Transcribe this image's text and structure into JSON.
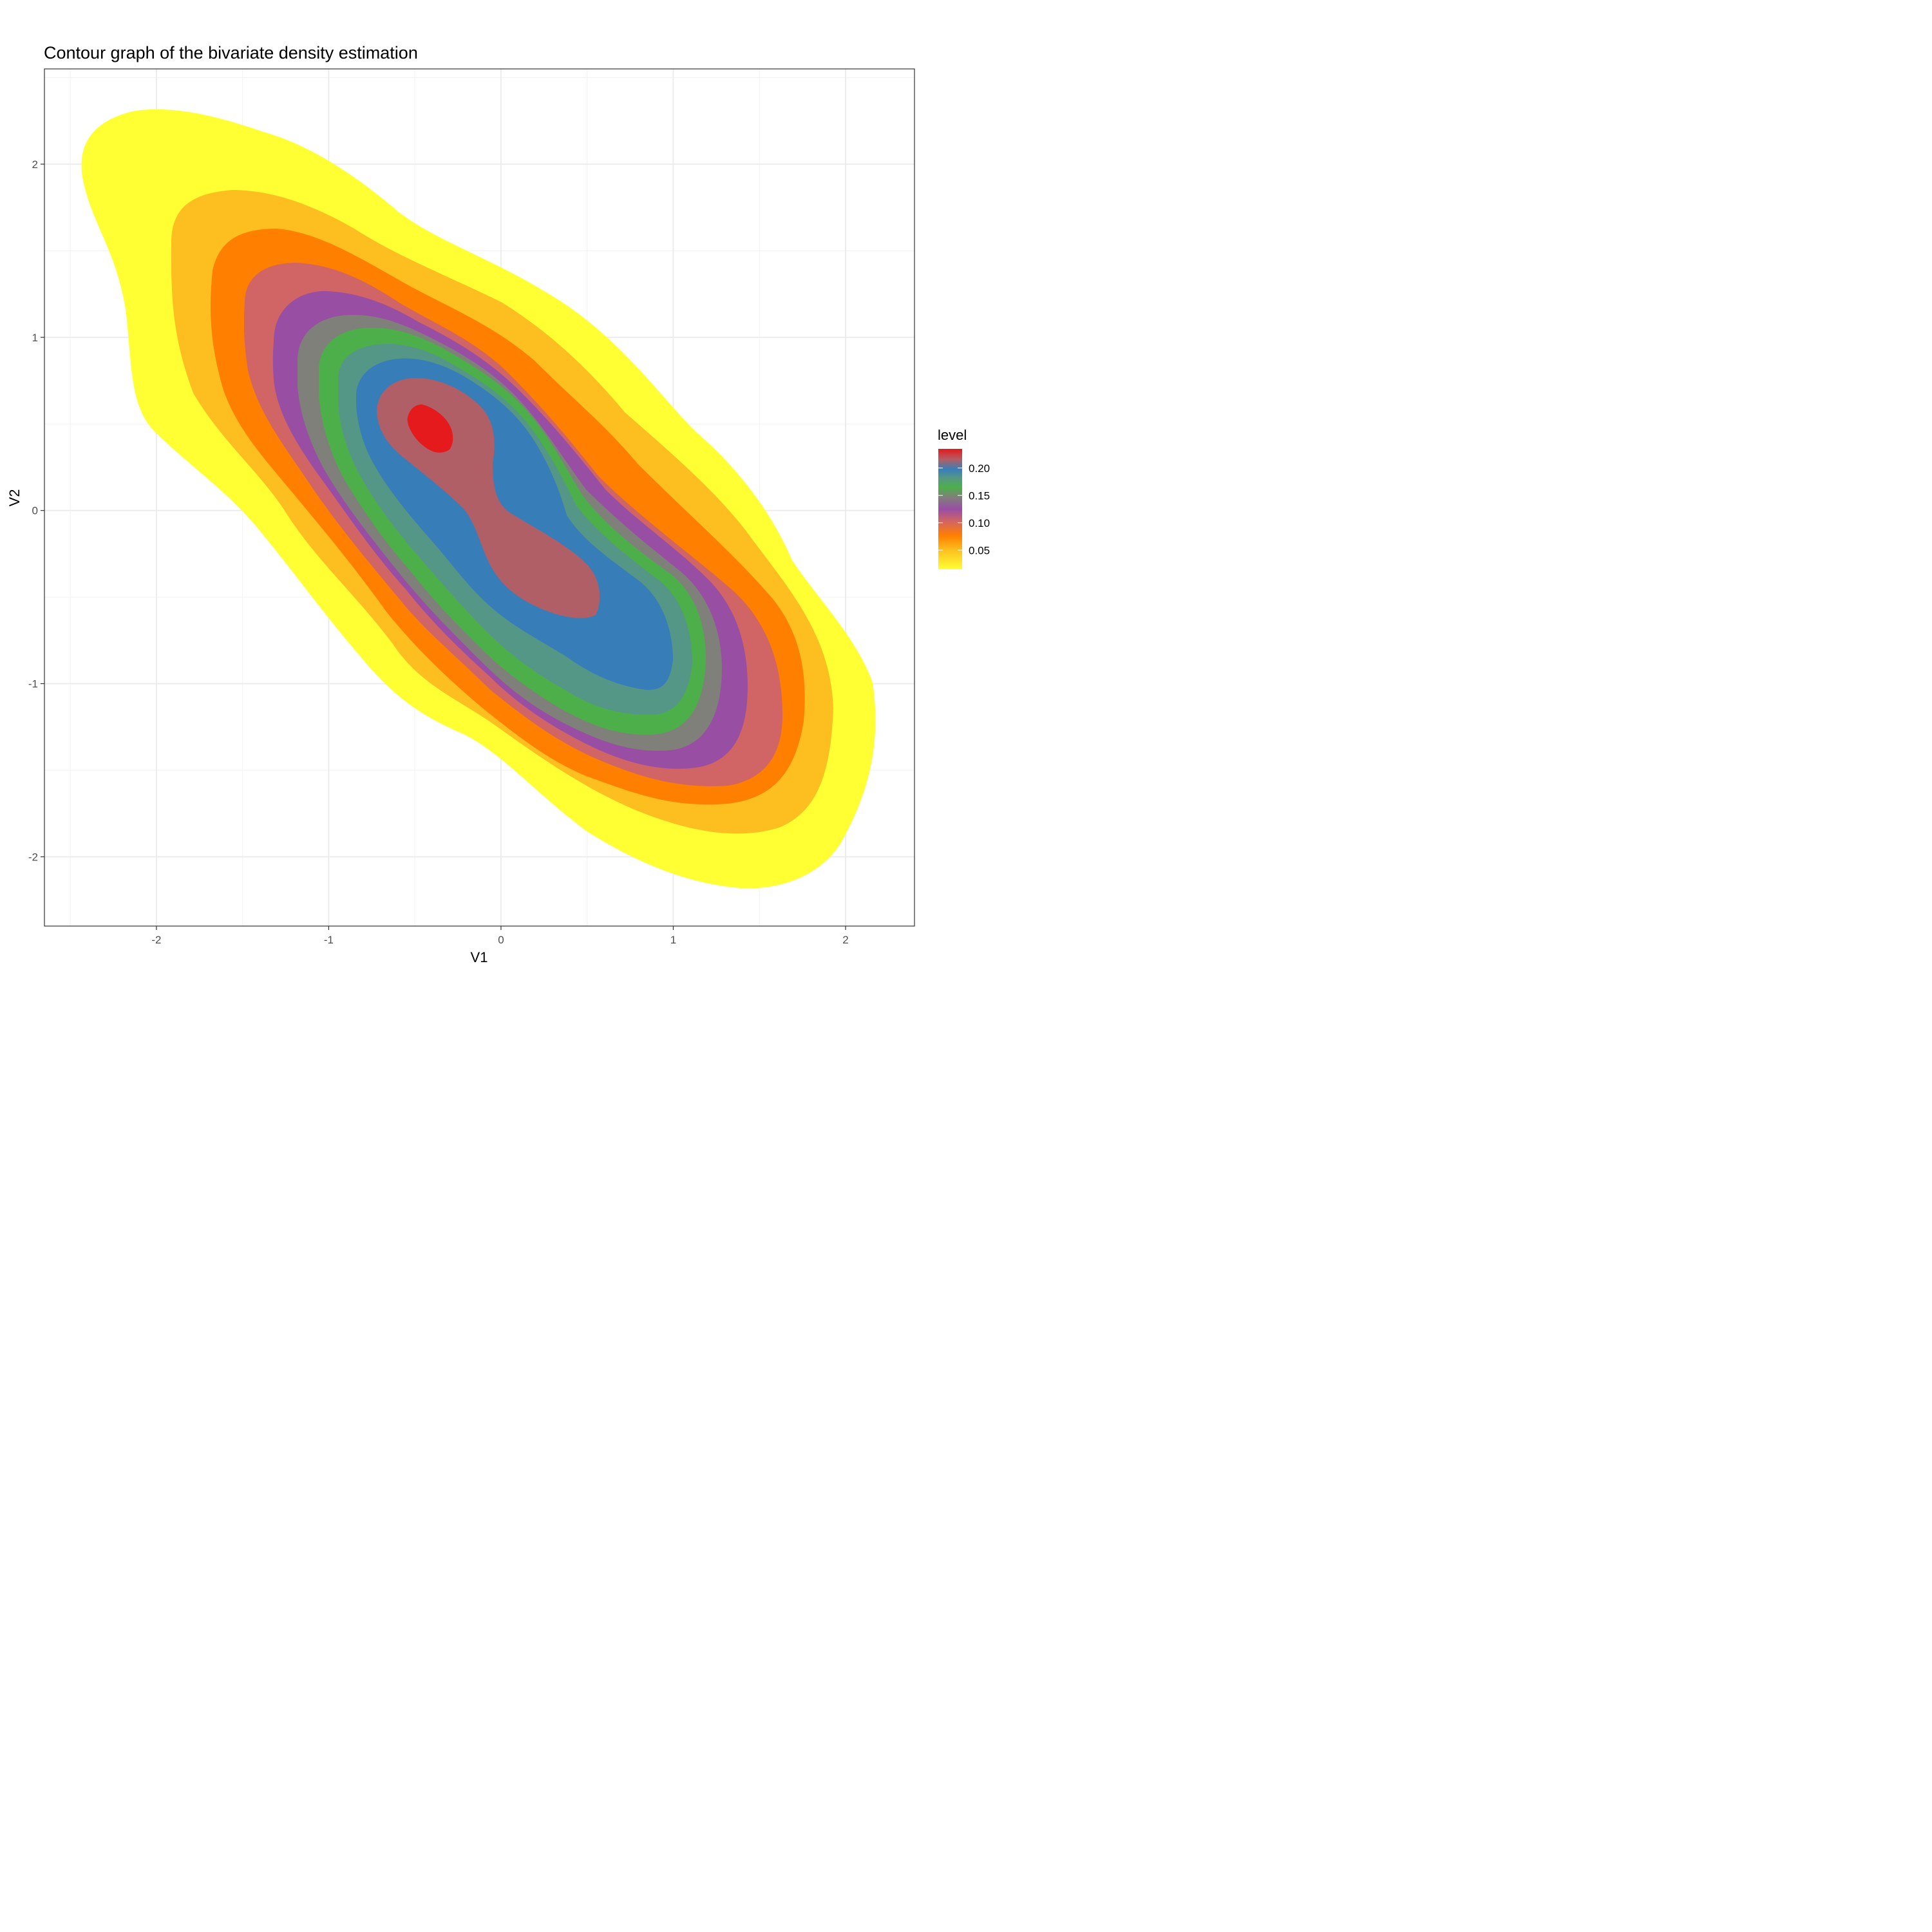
{
  "chart_data": {
    "type": "contour",
    "title": "Contour graph of the bivariate density estimation",
    "xlabel": "V1",
    "ylabel": "V2",
    "xlim": [
      -2.65,
      2.4
    ],
    "ylim": [
      -2.4,
      2.55
    ],
    "x_ticks": [
      "-2",
      "-1",
      "0",
      "1",
      "2"
    ],
    "y_ticks": [
      "-2",
      "-1",
      "0",
      "1",
      "2"
    ],
    "grid": true,
    "legend": {
      "title": "level",
      "position": "right",
      "labels": [
        "0.20",
        "0.15",
        "0.10",
        "0.05"
      ],
      "label_values": [
        0.2,
        0.15,
        0.1,
        0.05
      ],
      "range": [
        0.015,
        0.235
      ]
    },
    "levels": [
      {
        "level": 0.02,
        "color": "#FFFF33"
      },
      {
        "level": 0.04,
        "color": "#FDBF20"
      },
      {
        "level": 0.06,
        "color": "#FF7F00"
      },
      {
        "level": 0.08,
        "color": "#D16464"
      },
      {
        "level": 0.1,
        "color": "#984EA3"
      },
      {
        "level": 0.12,
        "color": "#80807A"
      },
      {
        "level": 0.14,
        "color": "#4DAF4A"
      },
      {
        "level": 0.16,
        "color": "#559786"
      },
      {
        "level": 0.18,
        "color": "#377EB8"
      },
      {
        "level": 0.2,
        "color": "#B05F67"
      },
      {
        "level": 0.22,
        "color": "#E41A1C"
      }
    ],
    "density_peaks": [
      {
        "x": -0.42,
        "y": 0.48
      },
      {
        "x": 0.7,
        "y": -0.85
      }
    ]
  }
}
